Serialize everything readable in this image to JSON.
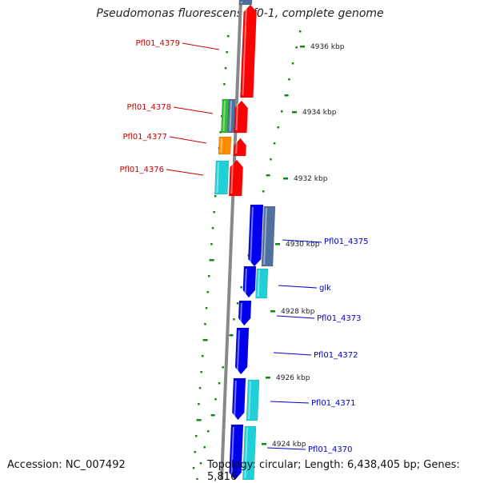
{
  "title": "Pseudomonas fluorescens Pf0-1, complete genome",
  "footer": {
    "accession": "Accession: NC_007492",
    "summary": "Topology: circular; Length: 6,438,405 bp; Genes: 5,816"
  },
  "colors": {
    "forward_strand": "#ff0000",
    "reverse_strand": "#0000ee",
    "cyan_feature": "#20d0d8",
    "green_feature": "#33bb33",
    "orange_feature": "#ff8c00",
    "slate_feature": "#5070a0",
    "backbone": "#888888",
    "tick": "#118811",
    "forward_label": "#cc0000",
    "reverse_label": "#0000cc"
  },
  "ticks": [
    {
      "label": "4936 kbp",
      "kbp": 4936
    },
    {
      "label": "4934 kbp",
      "kbp": 4934
    },
    {
      "label": "4932 kbp",
      "kbp": 4932
    },
    {
      "label": "4930 kbp",
      "kbp": 4930
    },
    {
      "label": "4928 kbp",
      "kbp": 4928
    },
    {
      "label": "4926 kbp",
      "kbp": 4926
    },
    {
      "label": "4924 kbp",
      "kbp": 4924
    }
  ],
  "forward_genes": [
    {
      "label": "Pfl01_4379"
    },
    {
      "label": "Pfl01_4378"
    },
    {
      "label": "Pfl01_4377"
    },
    {
      "label": "Pfl01_4376"
    }
  ],
  "reverse_genes": [
    {
      "label": "Pfl01_4375"
    },
    {
      "label": "glk"
    },
    {
      "label": "Pfl01_4373"
    },
    {
      "label": "Pfl01_4372"
    },
    {
      "label": "Pfl01_4371"
    },
    {
      "label": "Pfl01_4370"
    }
  ]
}
